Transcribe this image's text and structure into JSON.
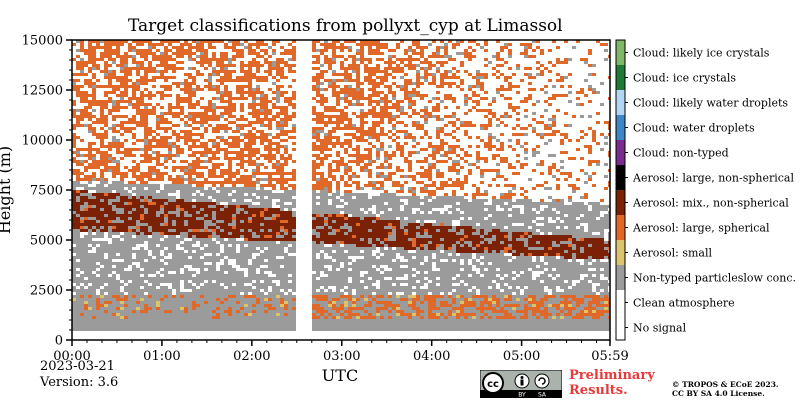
{
  "chart_data": {
    "type": "heatmap",
    "title": "Target classifications from pollyxt_cyp at Limassol",
    "xlabel": "UTC",
    "ylabel": "Height (m)",
    "x_range_hours": [
      0,
      5.983
    ],
    "y_range_m": [
      0,
      15000
    ],
    "x_ticks": [
      {
        "value": 0,
        "label": "00:00"
      },
      {
        "value": 1,
        "label": "01:00"
      },
      {
        "value": 2,
        "label": "02:00"
      },
      {
        "value": 3,
        "label": "03:00"
      },
      {
        "value": 4,
        "label": "04:00"
      },
      {
        "value": 5,
        "label": "05:00"
      },
      {
        "value": 5.983,
        "label": "05:59"
      }
    ],
    "y_ticks": [
      {
        "value": 0,
        "label": "0"
      },
      {
        "value": 2500,
        "label": "2500"
      },
      {
        "value": 5000,
        "label": "5000"
      },
      {
        "value": 7500,
        "label": "7500"
      },
      {
        "value": 10000,
        "label": "10000"
      },
      {
        "value": 12500,
        "label": "12500"
      },
      {
        "value": 15000,
        "label": "15000"
      }
    ],
    "data_gap_hours": [
      2.5,
      2.67
    ],
    "lowest_valid_height_m": 500,
    "classes": [
      {
        "label": "Cloud: likely ice crystals",
        "color": "#7fb866"
      },
      {
        "label": "Cloud: ice crystals",
        "color": "#1f7a35"
      },
      {
        "label": "Cloud: likely water droplets",
        "color": "#b3d6f5"
      },
      {
        "label": "Cloud: water droplets",
        "color": "#3d86c7"
      },
      {
        "label": "Cloud: non-typed",
        "color": "#7b2a8f"
      },
      {
        "label": "Aerosol: large, non-spherical",
        "color": "#000000"
      },
      {
        "label": "Aerosol: mix., non-spherical",
        "color": "#7a2106"
      },
      {
        "label": "Aerosol: large, spherical",
        "color": "#e0692a"
      },
      {
        "label": "Aerosol: small",
        "color": "#dcc46a"
      },
      {
        "label": "Non-typed particleslow conc.",
        "color": "#9b9b9b"
      },
      {
        "label": "Clean atmosphere",
        "color": "#ffffff"
      },
      {
        "label": "No signal",
        "color": "#ffffff"
      }
    ],
    "layers": [
      {
        "class": "Non-typed particleslow conc.",
        "height_range_m": [
          500,
          8000
        ],
        "note": "broad low-concentration aerosol"
      },
      {
        "class": "Aerosol: mix., non-spherical",
        "start": {
          "hour": 0,
          "height_range_m": [
            5500,
            7500
          ]
        },
        "end": {
          "hour": 5.983,
          "height_range_m": [
            4000,
            5000
          ]
        }
      },
      {
        "class": "Aerosol: large, spherical",
        "height_range_m": [
          1000,
          2200
        ],
        "note": "boundary layer, strongest after 03:00"
      },
      {
        "class": "Aerosol: large, spherical",
        "height_range_m": [
          8000,
          15000
        ],
        "note": "sparse speckle aloft, decreasing after 04:00"
      }
    ]
  },
  "footer": {
    "date": "2023-03-21",
    "version": "Version: 3.6",
    "preliminary_line1": "Preliminary",
    "preliminary_line2": "Results.",
    "copyright_line1": "© TROPOS & ECoE 2023.",
    "copyright_line2": "CC BY SA 4.0 License.",
    "license_badge": {
      "text_by": "BY",
      "text_sa": "SA"
    }
  }
}
